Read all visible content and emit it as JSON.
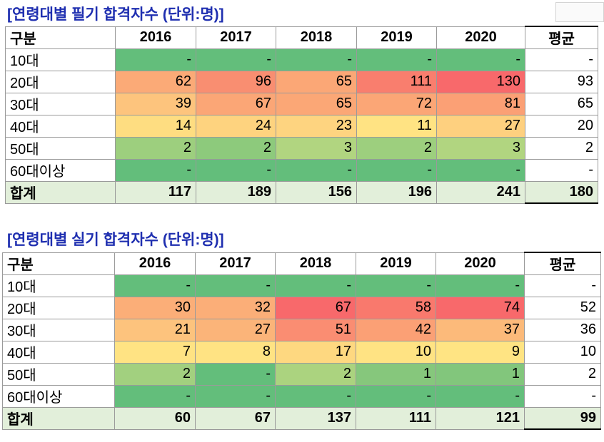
{
  "tables": [
    {
      "title": "[연령대별 필기 합격자수 (단위:명)]",
      "header": [
        "구분",
        "2016",
        "2017",
        "2018",
        "2019",
        "2020",
        "평균"
      ],
      "rows": [
        {
          "label": "10대",
          "cells": [
            "-",
            "-",
            "-",
            "-",
            "-"
          ],
          "avg": "-",
          "colors": [
            "#63be7b",
            "#63be7b",
            "#63be7b",
            "#63be7b",
            "#63be7b"
          ]
        },
        {
          "label": "20대",
          "cells": [
            "62",
            "96",
            "65",
            "111",
            "130"
          ],
          "avg": "93",
          "colors": [
            "#fbaa77",
            "#f98e71",
            "#fba776",
            "#f97e6e",
            "#f8696b"
          ]
        },
        {
          "label": "30대",
          "cells": [
            "39",
            "67",
            "65",
            "72",
            "81"
          ],
          "avg": "65",
          "colors": [
            "#fdc47d",
            "#fba676",
            "#fba776",
            "#fba676",
            "#fba075"
          ]
        },
        {
          "label": "40대",
          "cells": [
            "14",
            "24",
            "23",
            "11",
            "27"
          ],
          "avg": "20",
          "colors": [
            "#fedd81",
            "#fed37f",
            "#fed480",
            "#ffe383",
            "#fed07f"
          ]
        },
        {
          "label": "50대",
          "cells": [
            "2",
            "2",
            "3",
            "2",
            "3"
          ],
          "avg": "2",
          "colors": [
            "#9dcf7e",
            "#8dca7c",
            "#b1d580",
            "#9dcf7e",
            "#b1d580"
          ]
        },
        {
          "label": "60대이상",
          "cells": [
            "-",
            "-",
            "-",
            "-",
            "-"
          ],
          "avg": "-",
          "colors": [
            "#63be7b",
            "#63be7b",
            "#63be7b",
            "#63be7b",
            "#63be7b"
          ]
        }
      ],
      "total": {
        "label": "합계",
        "cells": [
          "117",
          "189",
          "156",
          "196",
          "241"
        ],
        "avg": "180"
      }
    },
    {
      "title": "[연령대별 실기 합격자수 (단위:명)]",
      "header": [
        "구분",
        "2016",
        "2017",
        "2018",
        "2019",
        "2020",
        "평균"
      ],
      "rows": [
        {
          "label": "10대",
          "cells": [
            "-",
            "-",
            "-",
            "-",
            "-"
          ],
          "avg": "-",
          "colors": [
            "#63be7b",
            "#63be7b",
            "#63be7b",
            "#63be7b",
            "#63be7b"
          ]
        },
        {
          "label": "20대",
          "cells": [
            "30",
            "32",
            "67",
            "58",
            "74"
          ],
          "avg": "52",
          "colors": [
            "#fbae78",
            "#fbae78",
            "#f8696b",
            "#f9796d",
            "#f8696b"
          ]
        },
        {
          "label": "30대",
          "cells": [
            "21",
            "27",
            "51",
            "42",
            "37"
          ],
          "avg": "36",
          "colors": [
            "#fdc37d",
            "#fbb479",
            "#fa8d72",
            "#fba075",
            "#fcba7a"
          ]
        },
        {
          "label": "40대",
          "cells": [
            "7",
            "8",
            "17",
            "10",
            "9"
          ],
          "avg": "10",
          "colors": [
            "#ffe383",
            "#ffe383",
            "#fed880",
            "#ffe383",
            "#ffe483"
          ]
        },
        {
          "label": "50대",
          "cells": [
            "2",
            "-",
            "2",
            "1",
            "1"
          ],
          "avg": "2",
          "colors": [
            "#a2d07f",
            "#63be7b",
            "#abd37f",
            "#86c77c",
            "#82c67c"
          ]
        },
        {
          "label": "60대이상",
          "cells": [
            "-",
            "-",
            "-",
            "-",
            "-"
          ],
          "avg": "-",
          "colors": [
            "#63be7b",
            "#63be7b",
            "#63be7b",
            "#63be7b",
            "#63be7b"
          ]
        }
      ],
      "total": {
        "label": "합계",
        "cells": [
          "60",
          "67",
          "137",
          "111",
          "121"
        ],
        "avg": "99"
      }
    }
  ]
}
